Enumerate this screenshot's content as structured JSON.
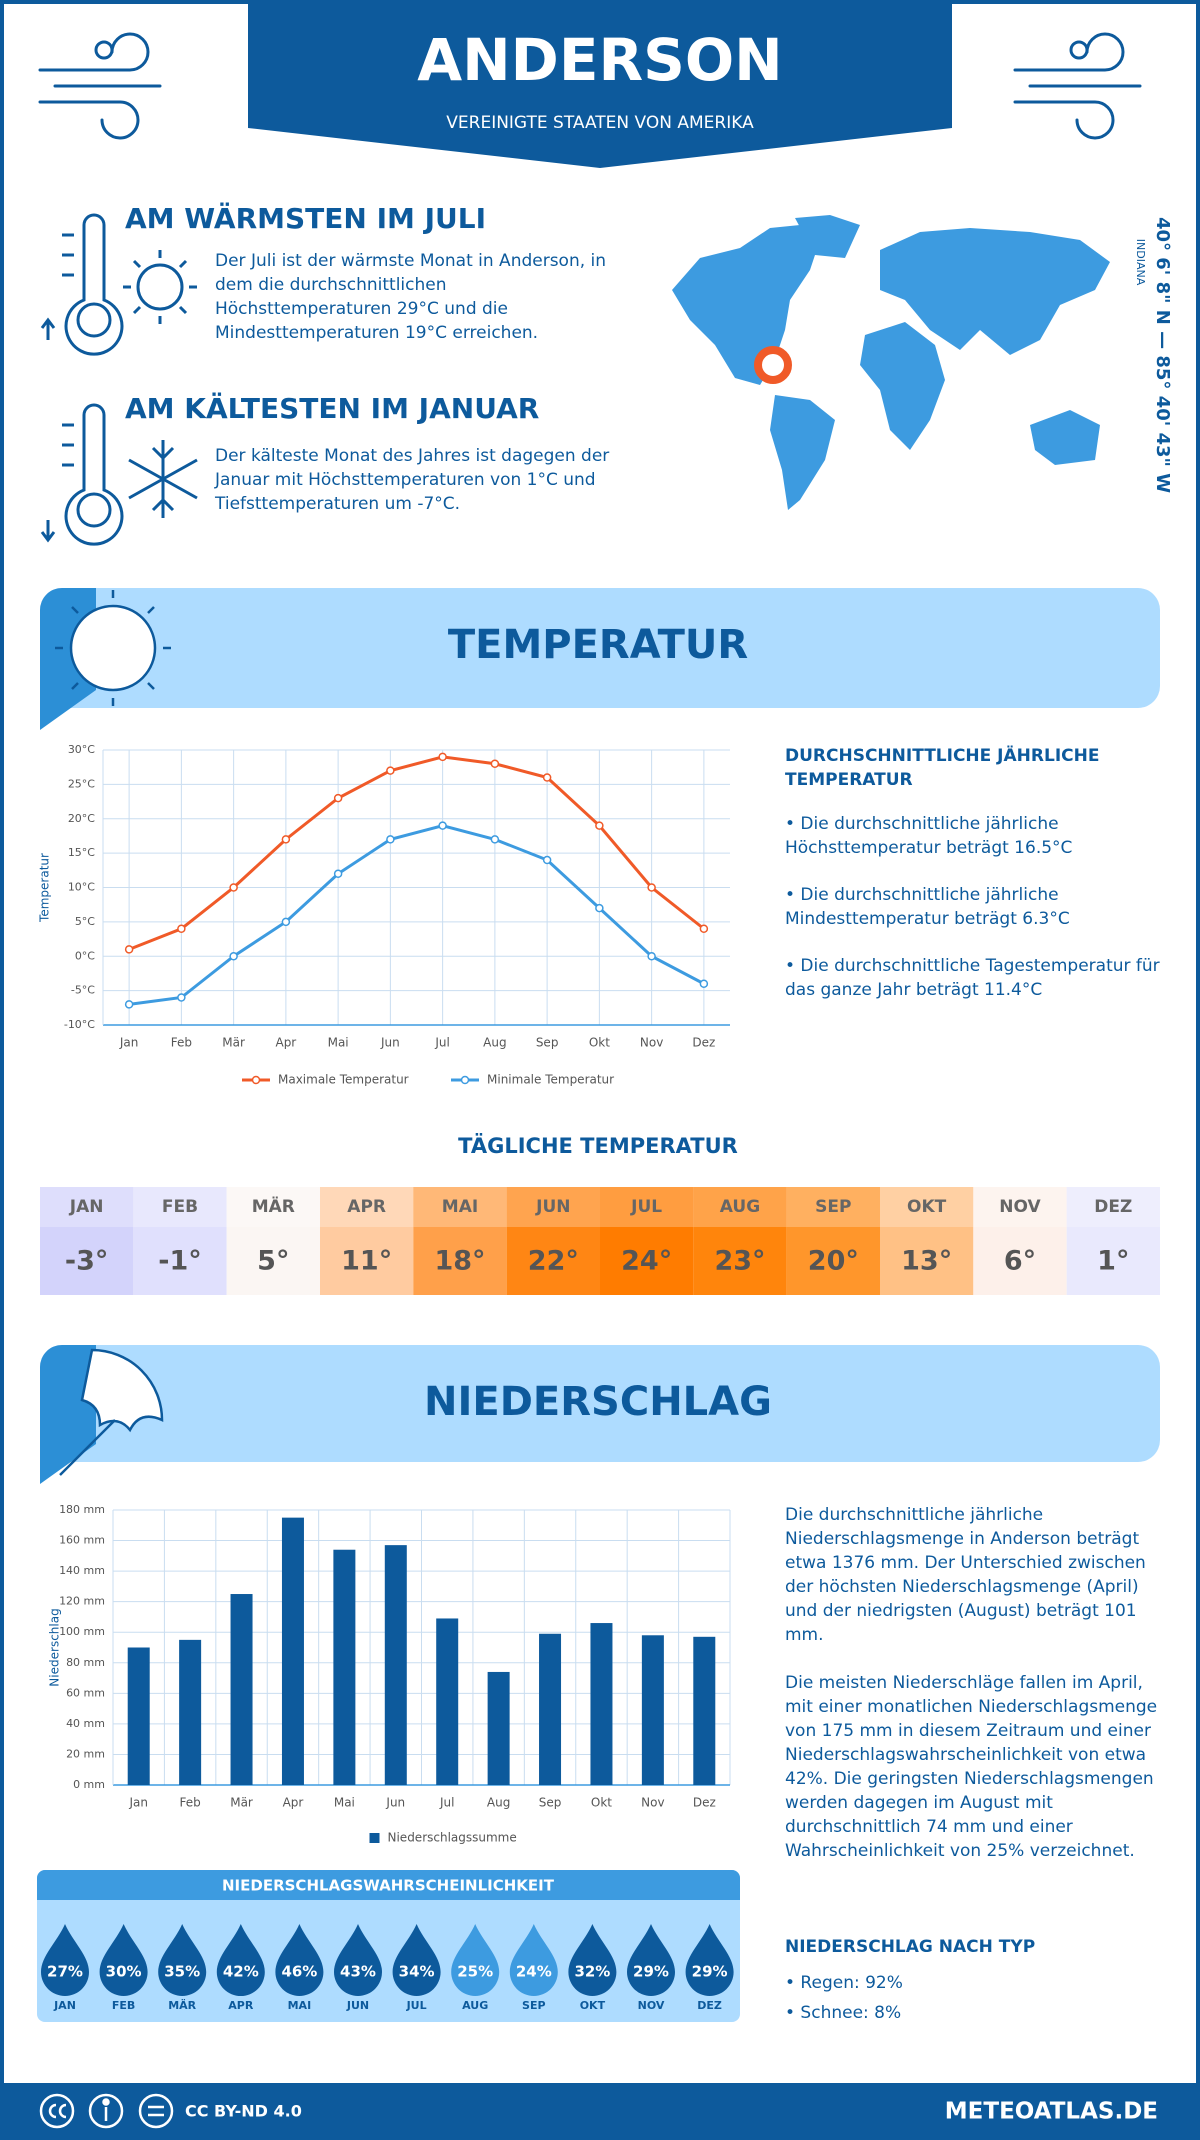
{
  "header": {
    "title": "ANDERSON",
    "subtitle": "VEREINIGTE STAATEN VON AMERIKA"
  },
  "location": {
    "coordinates": "40° 6' 8\" N — 85° 40' 43\" W",
    "region": "INDIANA"
  },
  "warmest": {
    "title": "AM WÄRMSTEN IM JULI",
    "text": "Der Juli ist der wärmste Monat in Anderson, in dem die durchschnittlichen Höchsttemperaturen 29°C und die Mindesttemperaturen 19°C erreichen."
  },
  "coldest": {
    "title": "AM KÄLTESTEN IM JANUAR",
    "text": "Der kälteste Monat des Jahres ist dagegen der Januar mit Höchsttemperaturen von 1°C und Tiefsttemperaturen um -7°C."
  },
  "temperature_section": {
    "title": "TEMPERATUR",
    "summary_title": "DURCHSCHNITTLICHE JÄHRLICHE TEMPERATUR",
    "bullets": [
      "• Die durchschnittliche jährliche Höchsttemperatur beträgt 16.5°C",
      "• Die durchschnittliche jährliche Mindesttemperatur beträgt 6.3°C",
      "• Die durchschnittliche Tagestemperatur für das ganze Jahr beträgt 11.4°C"
    ]
  },
  "chart_data": [
    {
      "type": "line",
      "y_label": "Temperatur",
      "categories": [
        "Jan",
        "Feb",
        "Mär",
        "Apr",
        "Mai",
        "Jun",
        "Jul",
        "Aug",
        "Sep",
        "Okt",
        "Nov",
        "Dez"
      ],
      "series": [
        {
          "name": "Maximale Temperatur",
          "color": "#f05a28",
          "values": [
            1,
            4,
            10,
            17,
            23,
            27,
            29,
            28,
            26,
            19,
            10,
            4
          ]
        },
        {
          "name": "Minimale Temperatur",
          "color": "#3d9be0",
          "values": [
            -7,
            -6,
            0,
            5,
            12,
            17,
            19,
            17,
            14,
            7,
            0,
            -4
          ]
        }
      ],
      "ylim": [
        -10,
        30
      ],
      "yticks": [
        {
          "value": -10,
          "label": "-10°C"
        },
        {
          "value": -5,
          "label": "-5°C"
        },
        {
          "value": 0,
          "label": "0°C"
        },
        {
          "value": 5,
          "label": "5°C"
        },
        {
          "value": 10,
          "label": "10°C"
        },
        {
          "value": 15,
          "label": "15°C"
        },
        {
          "value": 20,
          "label": "20°C"
        },
        {
          "value": 25,
          "label": "25°C"
        },
        {
          "value": 30,
          "label": "30°C"
        }
      ],
      "grid": true,
      "legend": "bottom"
    },
    {
      "type": "bar",
      "y_label": "Niederschlag",
      "categories": [
        "Jan",
        "Feb",
        "Mär",
        "Apr",
        "Mai",
        "Jun",
        "Jul",
        "Aug",
        "Sep",
        "Okt",
        "Nov",
        "Dez"
      ],
      "series": [
        {
          "name": "Niederschlagssumme",
          "color": "#0d5a9c",
          "values": [
            90,
            95,
            125,
            175,
            154,
            157,
            109,
            74,
            99,
            106,
            98,
            97
          ]
        }
      ],
      "ylim": [
        0,
        180
      ],
      "yticks": [
        {
          "value": 0,
          "label": "0 mm"
        },
        {
          "value": 20,
          "label": "20 mm"
        },
        {
          "value": 40,
          "label": "40 mm"
        },
        {
          "value": 60,
          "label": "60 mm"
        },
        {
          "value": 80,
          "label": "80 mm"
        },
        {
          "value": 100,
          "label": "100 mm"
        },
        {
          "value": 120,
          "label": "120 mm"
        },
        {
          "value": 140,
          "label": "140 mm"
        },
        {
          "value": 160,
          "label": "160 mm"
        },
        {
          "value": 180,
          "label": "180 mm"
        }
      ],
      "grid": true,
      "legend": "bottom"
    }
  ],
  "daily_temperature": {
    "title": "TÄGLICHE TEMPERATUR",
    "months": [
      "JAN",
      "FEB",
      "MÄR",
      "APR",
      "MAI",
      "JUN",
      "JUL",
      "AUG",
      "SEP",
      "OKT",
      "NOV",
      "DEZ"
    ],
    "values": [
      -3,
      -1,
      5,
      11,
      18,
      22,
      24,
      23,
      20,
      13,
      6,
      1
    ],
    "value_labels": [
      "-3°",
      "-1°",
      "5°",
      "11°",
      "18°",
      "22°",
      "24°",
      "23°",
      "20°",
      "13°",
      "6°",
      "1°"
    ],
    "colors": [
      "#d3d3fb",
      "#e0e0fd",
      "#fbf6f3",
      "#ffcba0",
      "#ffa04a",
      "#ff8614",
      "#ff7c00",
      "#ff850c",
      "#ff962b",
      "#ffc185",
      "#fdf0ea",
      "#e9e9fd"
    ]
  },
  "precipitation_section": {
    "title": "NIEDERSCHLAG",
    "paragraphs": [
      "Die durchschnittliche jährliche Niederschlagsmenge in Anderson beträgt etwa 1376 mm. Der Unterschied zwischen der höchsten Niederschlagsmenge (April) und der niedrigsten (August) beträgt 101 mm.",
      "Die meisten Niederschläge fallen im April, mit einer monatlichen Niederschlagsmenge von 175 mm in diesem Zeitraum und einer Niederschlagswahrscheinlichkeit von etwa 42%. Die geringsten Niederschlagsmengen werden dagegen im August mit durchschnittlich 74 mm und einer Wahrscheinlichkeit von 25% verzeichnet."
    ],
    "type_title": "NIEDERSCHLAG NACH TYP",
    "types": [
      "• Regen: 92%",
      "• Schnee: 8%"
    ]
  },
  "probability": {
    "title": "NIEDERSCHLAGSWAHRSCHEINLICHKEIT",
    "months": [
      "JAN",
      "FEB",
      "MÄR",
      "APR",
      "MAI",
      "JUN",
      "JUL",
      "AUG",
      "SEP",
      "OKT",
      "NOV",
      "DEZ"
    ],
    "values": [
      27,
      30,
      35,
      42,
      46,
      43,
      34,
      25,
      24,
      32,
      29,
      29
    ],
    "value_labels": [
      "27%",
      "30%",
      "35%",
      "42%",
      "46%",
      "43%",
      "34%",
      "25%",
      "24%",
      "32%",
      "29%",
      "29%"
    ],
    "colors": [
      "#0d5a9c",
      "#0d5a9c",
      "#0d5a9c",
      "#0d5a9c",
      "#0d5a9c",
      "#0d5a9c",
      "#0d5a9c",
      "#3d9be0",
      "#3d9be0",
      "#0d5a9c",
      "#0d5a9c",
      "#0d5a9c"
    ]
  },
  "footer": {
    "license": "CC BY-ND 4.0",
    "site": "METEOATLAS.DE"
  }
}
